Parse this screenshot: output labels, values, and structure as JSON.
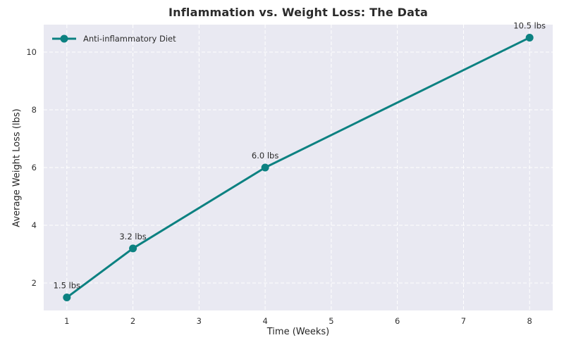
{
  "figure": {
    "title": "Inflammation vs. Weight Loss: The Data",
    "xlabel": "Time (Weeks)",
    "ylabel": "Average Weight Loss (lbs)",
    "legend": {
      "label": "Anti-inflammatory Diet",
      "position": "upper-left"
    }
  },
  "chart_data": {
    "type": "line",
    "title": "Inflammation vs. Weight Loss: The Data",
    "xlabel": "Time (Weeks)",
    "ylabel": "Average Weight Loss (lbs)",
    "x": [
      1,
      2,
      4,
      8
    ],
    "series": [
      {
        "name": "Anti-inflammatory Diet",
        "values": [
          1.5,
          3.2,
          6.0,
          10.5
        ]
      }
    ],
    "point_labels": [
      "1.5 lbs",
      "3.2 lbs",
      "6.0 lbs",
      "10.5 lbs"
    ],
    "x_ticks": [
      1,
      2,
      3,
      4,
      5,
      6,
      7,
      8
    ],
    "y_ticks": [
      2,
      4,
      6,
      8,
      10
    ],
    "xlim": [
      0.65,
      8.35
    ],
    "ylim": [
      1.05,
      10.95
    ],
    "grid": "dashed-white",
    "legend_position": "upper-left",
    "colors": {
      "line": "#0c8181",
      "plot_bg": "#e9e9f2",
      "grid": "#ffffff",
      "tick_text": "#333333",
      "annotation_text": "#2b2b2b"
    }
  }
}
